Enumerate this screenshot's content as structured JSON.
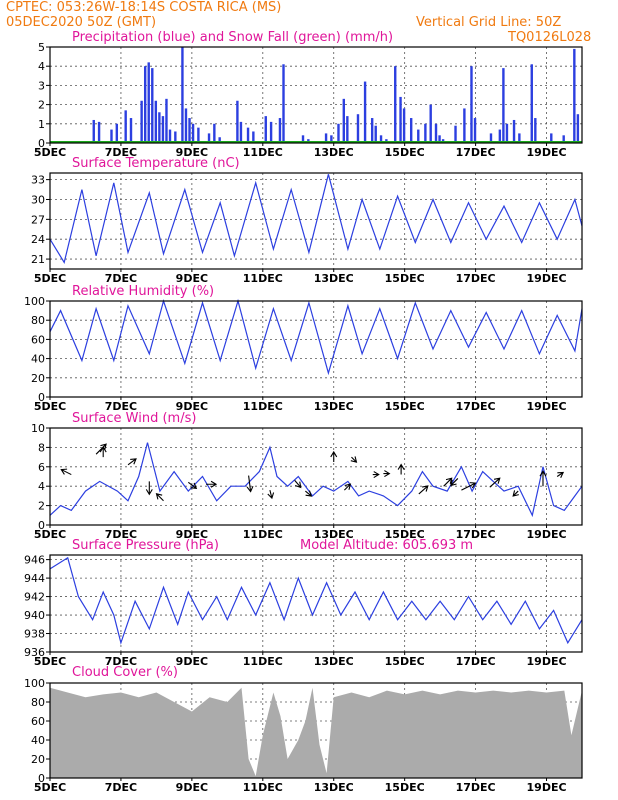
{
  "header": {
    "line1": "CPTEC:   053:26W-18:14S   COSTA RICA (MS)",
    "line2": "05DEC2020 50Z (GMT)",
    "grid_note": "Vertical Grid Line: 50Z",
    "code": "TQ0126L028"
  },
  "x_ticks": [
    "5DEC",
    "7DEC",
    "9DEC",
    "11DEC",
    "13DEC",
    "15DEC",
    "17DEC",
    "19DEC"
  ],
  "panels": {
    "precip": {
      "title": "Precipitation (blue) and Snow Fall (green) (mm/h)",
      "yticks": [
        "0",
        "1",
        "2",
        "3",
        "4",
        "5"
      ]
    },
    "temp": {
      "title": "Surface Temperature (nC)",
      "yticks": [
        "21",
        "24",
        "27",
        "30",
        "33"
      ]
    },
    "rh": {
      "title": "Relative Humidity (%)",
      "yticks": [
        "0",
        "20",
        "40",
        "60",
        "80",
        "100"
      ]
    },
    "wind": {
      "title": "Surface Wind (m/s)",
      "yticks": [
        "0",
        "2",
        "4",
        "6",
        "8",
        "10"
      ]
    },
    "press": {
      "title": "Surface Pressure (hPa)",
      "extra": "Model Altitude: 605.693 m",
      "yticks": [
        "936",
        "938",
        "940",
        "942",
        "944",
        "946"
      ]
    },
    "cloud": {
      "title": "Cloud Cover (%)",
      "yticks": [
        "0",
        "20",
        "40",
        "60",
        "80",
        "100"
      ]
    }
  },
  "colors": {
    "series": "#2c3fe0",
    "snow": "#1aa81a",
    "cloud": "#ababab",
    "title": "#e0169a",
    "header": "#f07a10"
  },
  "chart_data": [
    {
      "type": "bar",
      "title": "Precipitation (blue) and Snow Fall (green) (mm/h)",
      "ylim": [
        0,
        5
      ],
      "x_range": [
        "5DEC",
        "20DEC"
      ],
      "points": [
        [
          6.2,
          1.2
        ],
        [
          6.35,
          1.1
        ],
        [
          6.7,
          0.7
        ],
        [
          6.85,
          1.0
        ],
        [
          7.1,
          1.7
        ],
        [
          7.25,
          1.3
        ],
        [
          7.55,
          2.2
        ],
        [
          7.65,
          4.0
        ],
        [
          7.75,
          4.2
        ],
        [
          7.85,
          3.9
        ],
        [
          7.95,
          2.2
        ],
        [
          8.05,
          1.6
        ],
        [
          8.15,
          1.4
        ],
        [
          8.25,
          2.3
        ],
        [
          8.35,
          0.7
        ],
        [
          8.5,
          0.6
        ],
        [
          8.7,
          5.0
        ],
        [
          8.8,
          1.8
        ],
        [
          8.9,
          1.3
        ],
        [
          9.0,
          1.0
        ],
        [
          9.15,
          0.8
        ],
        [
          9.45,
          0.5
        ],
        [
          9.6,
          1.0
        ],
        [
          9.75,
          0.3
        ],
        [
          10.25,
          2.2
        ],
        [
          10.35,
          1.1
        ],
        [
          10.55,
          0.8
        ],
        [
          10.7,
          0.6
        ],
        [
          11.05,
          1.4
        ],
        [
          11.2,
          1.1
        ],
        [
          11.45,
          1.3
        ],
        [
          11.55,
          4.1
        ],
        [
          12.1,
          0.4
        ],
        [
          12.25,
          0.2
        ],
        [
          12.75,
          0.5
        ],
        [
          12.9,
          0.4
        ],
        [
          13.1,
          1.0
        ],
        [
          13.25,
          2.3
        ],
        [
          13.35,
          1.4
        ],
        [
          13.65,
          1.5
        ],
        [
          13.85,
          3.2
        ],
        [
          14.05,
          1.3
        ],
        [
          14.15,
          0.9
        ],
        [
          14.3,
          0.4
        ],
        [
          14.45,
          0.2
        ],
        [
          14.7,
          4.0
        ],
        [
          14.85,
          2.4
        ],
        [
          14.95,
          1.8
        ],
        [
          15.15,
          1.3
        ],
        [
          15.35,
          0.7
        ],
        [
          15.55,
          1.0
        ],
        [
          15.7,
          2.0
        ],
        [
          15.85,
          1.0
        ],
        [
          15.95,
          0.4
        ],
        [
          16.05,
          0.2
        ],
        [
          16.4,
          0.9
        ],
        [
          16.65,
          1.8
        ],
        [
          16.85,
          4.0
        ],
        [
          16.95,
          1.3
        ],
        [
          17.4,
          0.5
        ],
        [
          17.65,
          0.7
        ],
        [
          17.75,
          3.9
        ],
        [
          17.85,
          1.0
        ],
        [
          18.05,
          1.2
        ],
        [
          18.2,
          0.5
        ],
        [
          18.55,
          4.1
        ],
        [
          18.65,
          1.3
        ],
        [
          19.1,
          0.5
        ],
        [
          19.45,
          0.4
        ],
        [
          19.75,
          4.9
        ],
        [
          19.85,
          1.5
        ]
      ],
      "snow": []
    },
    {
      "type": "line",
      "title": "Surface Temperature (nC)",
      "ylim": [
        19.5,
        34
      ],
      "x_range": [
        "5DEC",
        "20DEC"
      ],
      "points": [
        [
          5.0,
          24.0
        ],
        [
          5.4,
          20.5
        ],
        [
          5.9,
          31.5
        ],
        [
          6.3,
          21.5
        ],
        [
          6.8,
          32.5
        ],
        [
          7.2,
          22.0
        ],
        [
          7.8,
          31.0
        ],
        [
          8.2,
          21.8
        ],
        [
          8.8,
          31.5
        ],
        [
          9.3,
          22.0
        ],
        [
          9.8,
          29.5
        ],
        [
          10.2,
          21.5
        ],
        [
          10.8,
          32.5
        ],
        [
          11.3,
          22.5
        ],
        [
          11.8,
          31.5
        ],
        [
          12.3,
          22.0
        ],
        [
          12.85,
          33.8
        ],
        [
          13.4,
          22.5
        ],
        [
          13.8,
          30.0
        ],
        [
          14.3,
          22.5
        ],
        [
          14.8,
          30.5
        ],
        [
          15.3,
          23.5
        ],
        [
          15.8,
          30.0
        ],
        [
          16.3,
          23.5
        ],
        [
          16.8,
          29.5
        ],
        [
          17.3,
          24.0
        ],
        [
          17.8,
          29.0
        ],
        [
          18.3,
          23.5
        ],
        [
          18.8,
          29.5
        ],
        [
          19.3,
          24.0
        ],
        [
          19.8,
          30.0
        ],
        [
          20.0,
          26.0
        ]
      ]
    },
    {
      "type": "line",
      "title": "Relative Humidity (%)",
      "ylim": [
        0,
        100
      ],
      "x_range": [
        "5DEC",
        "20DEC"
      ],
      "points": [
        [
          5.0,
          68
        ],
        [
          5.3,
          90
        ],
        [
          5.9,
          38
        ],
        [
          6.3,
          92
        ],
        [
          6.8,
          38
        ],
        [
          7.2,
          95
        ],
        [
          7.8,
          45
        ],
        [
          8.2,
          100
        ],
        [
          8.8,
          35
        ],
        [
          9.3,
          98
        ],
        [
          9.8,
          38
        ],
        [
          10.3,
          100
        ],
        [
          10.8,
          30
        ],
        [
          11.3,
          92
        ],
        [
          11.8,
          38
        ],
        [
          12.3,
          98
        ],
        [
          12.85,
          25
        ],
        [
          13.4,
          95
        ],
        [
          13.8,
          45
        ],
        [
          14.3,
          92
        ],
        [
          14.8,
          40
        ],
        [
          15.3,
          98
        ],
        [
          15.8,
          50
        ],
        [
          16.3,
          90
        ],
        [
          16.8,
          52
        ],
        [
          17.3,
          88
        ],
        [
          17.8,
          50
        ],
        [
          18.3,
          90
        ],
        [
          18.8,
          45
        ],
        [
          19.3,
          85
        ],
        [
          19.8,
          48
        ],
        [
          20.0,
          92
        ]
      ]
    },
    {
      "type": "line",
      "title": "Surface Wind (m/s)",
      "ylim": [
        0,
        10
      ],
      "x_range": [
        "5DEC",
        "20DEC"
      ],
      "points": [
        [
          5.0,
          1.0
        ],
        [
          5.3,
          2.0
        ],
        [
          5.6,
          1.5
        ],
        [
          6.0,
          3.5
        ],
        [
          6.4,
          4.5
        ],
        [
          6.9,
          3.5
        ],
        [
          7.2,
          2.5
        ],
        [
          7.5,
          5.0
        ],
        [
          7.75,
          8.5
        ],
        [
          8.1,
          3.5
        ],
        [
          8.5,
          5.5
        ],
        [
          8.9,
          3.5
        ],
        [
          9.3,
          5.0
        ],
        [
          9.7,
          2.5
        ],
        [
          10.1,
          4.0
        ],
        [
          10.5,
          4.0
        ],
        [
          10.9,
          5.5
        ],
        [
          11.2,
          8.0
        ],
        [
          11.4,
          5.0
        ],
        [
          11.7,
          4.0
        ],
        [
          12.0,
          5.0
        ],
        [
          12.4,
          3.0
        ],
        [
          12.7,
          4.0
        ],
        [
          13.0,
          3.5
        ],
        [
          13.4,
          4.5
        ],
        [
          13.7,
          3.0
        ],
        [
          14.0,
          3.5
        ],
        [
          14.4,
          3.0
        ],
        [
          14.8,
          2.0
        ],
        [
          15.2,
          3.5
        ],
        [
          15.5,
          5.5
        ],
        [
          15.8,
          4.0
        ],
        [
          16.2,
          3.5
        ],
        [
          16.6,
          6.0
        ],
        [
          16.9,
          3.5
        ],
        [
          17.2,
          5.5
        ],
        [
          17.5,
          4.5
        ],
        [
          17.8,
          3.5
        ],
        [
          18.2,
          4.0
        ],
        [
          18.6,
          1.0
        ],
        [
          18.9,
          6.0
        ],
        [
          19.2,
          2.0
        ],
        [
          19.5,
          1.5
        ],
        [
          19.8,
          3.0
        ],
        [
          20.0,
          4.0
        ]
      ]
    },
    {
      "type": "line",
      "title": "Surface Pressure (hPa)",
      "ylim": [
        936,
        946.5
      ],
      "x_range": [
        "5DEC",
        "20DEC"
      ],
      "points": [
        [
          5.0,
          945.0
        ],
        [
          5.5,
          946.2
        ],
        [
          5.8,
          942.0
        ],
        [
          6.2,
          939.5
        ],
        [
          6.5,
          942.5
        ],
        [
          6.8,
          940.0
        ],
        [
          7.0,
          937.0
        ],
        [
          7.4,
          941.5
        ],
        [
          7.8,
          938.5
        ],
        [
          8.2,
          943.0
        ],
        [
          8.6,
          939.0
        ],
        [
          8.9,
          942.5
        ],
        [
          9.3,
          939.5
        ],
        [
          9.7,
          942.0
        ],
        [
          10.0,
          939.5
        ],
        [
          10.4,
          943.0
        ],
        [
          10.8,
          940.0
        ],
        [
          11.2,
          943.5
        ],
        [
          11.6,
          939.5
        ],
        [
          12.0,
          944.0
        ],
        [
          12.4,
          940.0
        ],
        [
          12.8,
          943.5
        ],
        [
          13.2,
          940.0
        ],
        [
          13.6,
          942.5
        ],
        [
          14.0,
          939.5
        ],
        [
          14.4,
          942.5
        ],
        [
          14.8,
          939.5
        ],
        [
          15.2,
          941.5
        ],
        [
          15.6,
          939.5
        ],
        [
          16.0,
          941.5
        ],
        [
          16.4,
          939.5
        ],
        [
          16.8,
          942.0
        ],
        [
          17.2,
          939.5
        ],
        [
          17.6,
          941.5
        ],
        [
          18.0,
          939.0
        ],
        [
          18.4,
          941.5
        ],
        [
          18.8,
          938.5
        ],
        [
          19.2,
          940.5
        ],
        [
          19.6,
          937.0
        ],
        [
          20.0,
          939.5
        ]
      ]
    },
    {
      "type": "area",
      "title": "Cloud Cover (%)",
      "ylim": [
        0,
        100
      ],
      "x_range": [
        "5DEC",
        "20DEC"
      ],
      "points": [
        [
          5.0,
          95
        ],
        [
          5.5,
          90
        ],
        [
          6.0,
          85
        ],
        [
          6.5,
          88
        ],
        [
          7.0,
          90
        ],
        [
          7.5,
          85
        ],
        [
          8.0,
          90
        ],
        [
          8.5,
          80
        ],
        [
          9.0,
          70
        ],
        [
          9.5,
          85
        ],
        [
          10.0,
          80
        ],
        [
          10.4,
          95
        ],
        [
          10.6,
          20
        ],
        [
          10.8,
          2
        ],
        [
          11.0,
          45
        ],
        [
          11.3,
          90
        ],
        [
          11.5,
          65
        ],
        [
          11.7,
          20
        ],
        [
          12.0,
          40
        ],
        [
          12.2,
          60
        ],
        [
          12.4,
          95
        ],
        [
          12.6,
          35
        ],
        [
          12.8,
          5
        ],
        [
          13.0,
          85
        ],
        [
          13.5,
          90
        ],
        [
          14.0,
          85
        ],
        [
          14.5,
          92
        ],
        [
          15.0,
          88
        ],
        [
          15.5,
          92
        ],
        [
          16.0,
          88
        ],
        [
          16.5,
          92
        ],
        [
          17.0,
          90
        ],
        [
          17.5,
          92
        ],
        [
          18.0,
          90
        ],
        [
          18.5,
          92
        ],
        [
          19.0,
          90
        ],
        [
          19.5,
          92
        ],
        [
          19.7,
          45
        ],
        [
          20.0,
          92
        ]
      ]
    }
  ]
}
